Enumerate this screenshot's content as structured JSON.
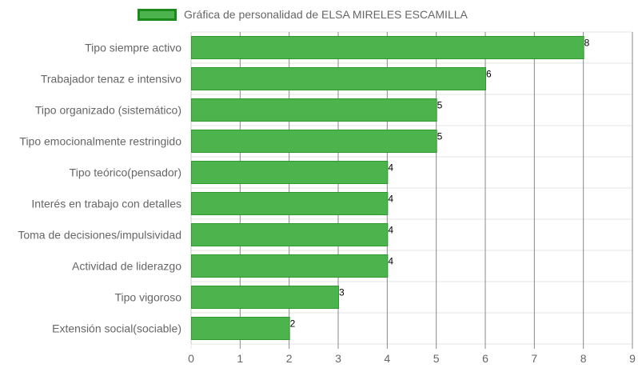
{
  "colors": {
    "bar_fill": "#4db44d",
    "bar_stroke": "#2e9a2e",
    "legend_border": "#1a8a1a",
    "grid": "#e6e6e6",
    "grid_major": "#888888",
    "label": "#666666"
  },
  "chart_data": {
    "type": "bar",
    "orientation": "horizontal",
    "categories": [
      "Tipo siempre activo",
      "Trabajador tenaz e intensivo",
      "Tipo organizado (sistemático)",
      "Tipo emocionalmente restringido",
      "Tipo teórico(pensador)",
      "Interés en trabajo con detalles",
      "Toma de decisiones/impulsividad",
      "Actividad de liderazgo",
      "Tipo vigoroso",
      "Extensión social(sociable)"
    ],
    "series": [
      {
        "name": "Gráfica de personalidad de ELSA MIRELES ESCAMILLA",
        "values": [
          8,
          6,
          5,
          5,
          4,
          4,
          4,
          4,
          3,
          2
        ]
      }
    ],
    "xlim": [
      0,
      9
    ],
    "x_ticks": [
      "0",
      "1",
      "2",
      "3",
      "4",
      "5",
      "6",
      "7",
      "8",
      "9"
    ],
    "grid": true,
    "legend_position": "top",
    "data_labels": [
      "8",
      "6",
      "5",
      "5",
      "4",
      "4",
      "4",
      "4",
      "3",
      "2"
    ]
  }
}
